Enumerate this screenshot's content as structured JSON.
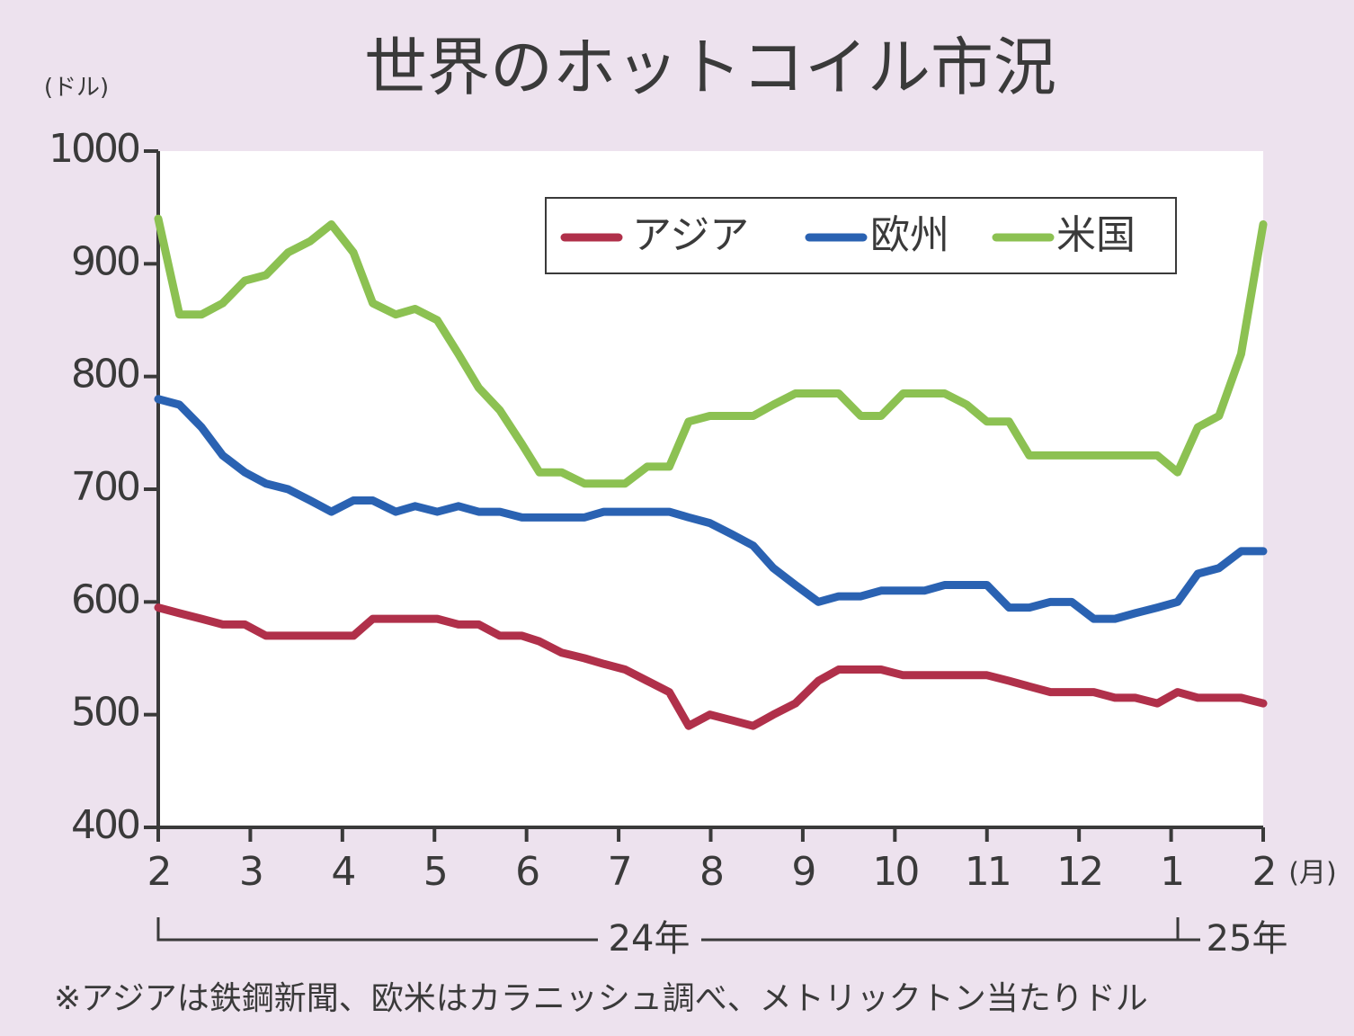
{
  "chart_data": {
    "type": "line",
    "title": "世界のホットコイル市況",
    "y_label": "(ドル)",
    "x_label": "(月)",
    "year_labels": [
      "24年",
      "25年"
    ],
    "note": "※アジアは鉄鋼新聞、欧米はカラニッシュ調べ、メトリックトン当たりドル",
    "x": [
      0,
      0.23,
      0.47,
      0.7,
      0.94,
      1.17,
      1.41,
      1.65,
      1.88,
      2.12,
      2.33,
      2.58,
      2.79,
      3.03,
      3.26,
      3.48,
      3.71,
      3.95,
      4.14,
      4.38,
      4.63,
      4.84,
      5.07,
      5.31,
      5.55,
      5.76,
      5.99,
      6.23,
      6.46,
      6.68,
      6.92,
      7.17,
      7.39,
      7.63,
      7.85,
      8.09,
      8.32,
      8.54,
      8.78,
      9.0,
      9.24,
      9.46,
      9.69,
      9.92,
      10.16,
      10.39,
      10.61,
      10.85,
      11.07,
      11.29,
      11.52,
      11.76,
      12
    ],
    "series": [
      {
        "name": "アジア",
        "color": "#b0304a",
        "values": [
          595,
          590,
          585,
          580,
          580,
          570,
          570,
          570,
          570,
          570,
          585,
          585,
          585,
          585,
          580,
          580,
          570,
          570,
          565,
          555,
          550,
          545,
          540,
          530,
          520,
          490,
          500,
          495,
          490,
          500,
          510,
          530,
          540,
          540,
          540,
          535,
          535,
          535,
          535,
          535,
          530,
          525,
          520,
          520,
          520,
          515,
          515,
          510,
          520,
          515,
          515,
          515,
          510
        ]
      },
      {
        "name": "欧州",
        "color": "#2a62b2",
        "values": [
          780,
          775,
          755,
          730,
          715,
          705,
          700,
          690,
          680,
          690,
          690,
          680,
          685,
          680,
          685,
          680,
          680,
          675,
          675,
          675,
          675,
          680,
          680,
          680,
          680,
          675,
          670,
          660,
          650,
          630,
          615,
          600,
          605,
          605,
          610,
          610,
          610,
          615,
          615,
          615,
          595,
          595,
          600,
          600,
          585,
          585,
          590,
          595,
          600,
          625,
          630,
          645,
          645
        ]
      },
      {
        "name": "米国",
        "color": "#8cc152",
        "values": [
          940,
          855,
          855,
          865,
          885,
          890,
          910,
          920,
          935,
          910,
          865,
          855,
          860,
          850,
          820,
          790,
          770,
          740,
          715,
          715,
          705,
          705,
          705,
          720,
          720,
          760,
          765,
          765,
          765,
          775,
          785,
          785,
          785,
          765,
          765,
          785,
          785,
          785,
          775,
          760,
          760,
          730,
          730,
          730,
          730,
          730,
          730,
          730,
          715,
          755,
          765,
          820,
          935
        ]
      }
    ],
    "xlim": [
      0,
      12
    ],
    "xticks": [
      {
        "value": 0,
        "label": "2"
      },
      {
        "value": 1,
        "label": "3"
      },
      {
        "value": 2,
        "label": "4"
      },
      {
        "value": 3,
        "label": "5"
      },
      {
        "value": 4,
        "label": "6"
      },
      {
        "value": 5,
        "label": "7"
      },
      {
        "value": 6,
        "label": "8"
      },
      {
        "value": 7,
        "label": "9"
      },
      {
        "value": 8,
        "label": "10"
      },
      {
        "value": 9,
        "label": "11"
      },
      {
        "value": 10,
        "label": "12"
      },
      {
        "value": 11,
        "label": "1"
      },
      {
        "value": 12,
        "label": "2"
      }
    ],
    "ylim": [
      400,
      1000
    ],
    "yticks": [
      400,
      500,
      600,
      700,
      800,
      900,
      1000
    ],
    "grid": false,
    "legend": "top-right"
  }
}
